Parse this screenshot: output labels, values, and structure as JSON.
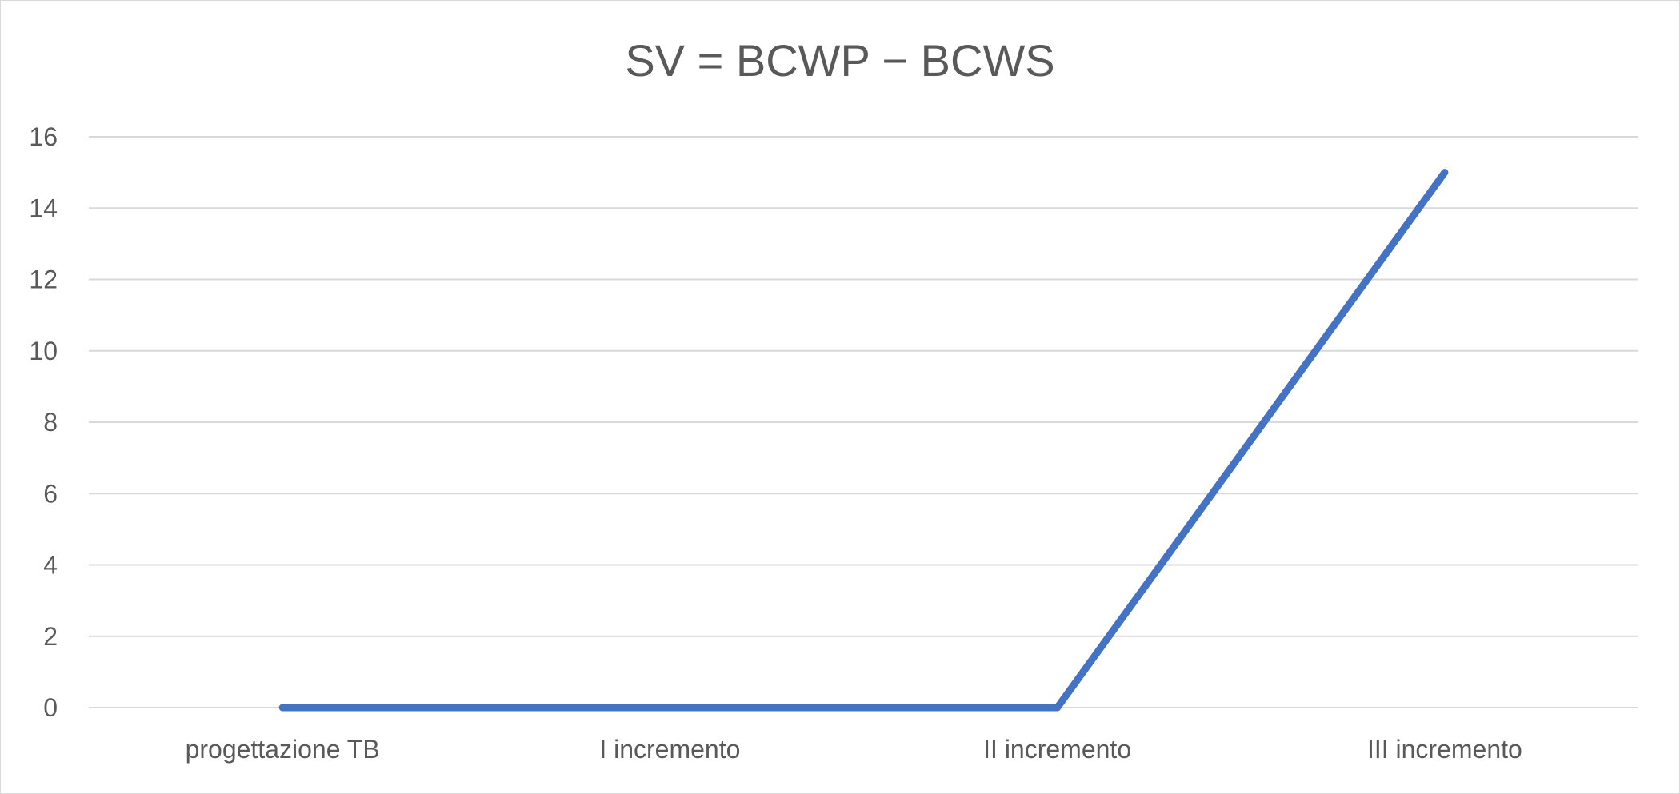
{
  "chart_data": {
    "type": "line",
    "title": "SV = BCWP − BCWS",
    "xlabel": "",
    "ylabel": "",
    "categories": [
      "progettazione TB",
      "I incremento",
      "II incremento",
      "III incremento"
    ],
    "series": [
      {
        "values": [
          0,
          0,
          0,
          15
        ],
        "color": "#4472c4"
      }
    ],
    "ylim": [
      0,
      16
    ],
    "yticks": [
      0,
      2,
      4,
      6,
      8,
      10,
      12,
      14,
      16
    ],
    "grid": true,
    "legend": "none",
    "gridline_color": "#d9d9d9",
    "text_color": "#595959"
  }
}
